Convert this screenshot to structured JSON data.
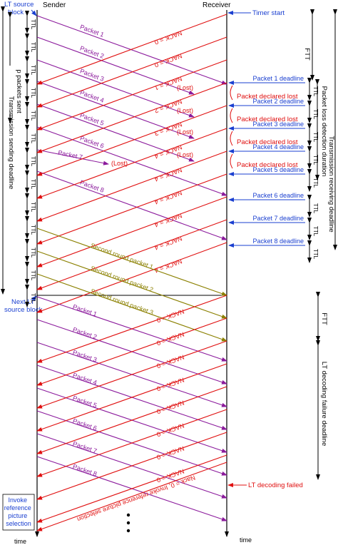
{
  "labels": {
    "sender": "Sender",
    "receiver": "Receiver",
    "time_left": "time",
    "time_right": "time",
    "lt_source_block": [
      "LT source",
      "block"
    ],
    "next_lt_source_block": [
      "Next LT",
      "source block"
    ],
    "p_packets_sent": "p packets sent",
    "transmission_sending_deadline": "Transmission sending deadline",
    "timer_start": "Timer start",
    "ftt": "FTT",
    "packet_loss_detection_duration": "Packet loss detection duration",
    "transmission_receiving_deadline": "Transmission receiving deadline",
    "lt_decoding_failure_deadline": "LT decoding failure deadline",
    "lt_decoding_failed": "LT decoding failed",
    "invoke_reference": [
      "Invoke",
      "reference",
      "picture",
      "selection"
    ],
    "ttl": "TTL",
    "lost": "(Lost)",
    "nack_invoke": "Nack = 0, Invoke reference picture selection"
  },
  "round1_packets": [
    "Packet 1",
    "Packet 2",
    "Packet 3",
    "Packet 4",
    "Packet 5",
    "Packet 6",
    "Packet 7",
    "Packet 8"
  ],
  "round1_nacks": [
    "NACK = 0",
    "NACK = 0",
    "NACK = 1",
    "NACK = 2",
    "NACK = 3",
    "NACK = 4",
    "NACK = 4",
    "NACK = 4",
    "NACK = 4",
    "NACK = 4",
    "NACK = 4"
  ],
  "second_round": [
    "Second round packet 1",
    "Second round packet 2",
    "Second round packet 3"
  ],
  "round2_packets": [
    "Packet 1",
    "Packet 2",
    "Packet 3",
    "Packet 4",
    "Packet 5",
    "Packet 6",
    "Packet 7",
    "Packet 8"
  ],
  "round2_nacks": [
    "NACK = 0",
    "NACK = 0",
    "NACK = 0",
    "NACK = 0",
    "NACK = 0",
    "NACK = 0",
    "NACK = 0",
    "NACK = 0"
  ],
  "deadlines": [
    "Packet 1 deadline",
    "Packet 2 deadline",
    "Packet 3 deadline",
    "Packet 4 deadline",
    "Packet 5 deadline",
    "Packet 6 deadline",
    "Packet 7 deadline",
    "Packet 8 deadline"
  ],
  "declared_lost": [
    "Packet declared lost",
    "Packet declared lost",
    "Packet declared lost",
    "Packet declared lost"
  ],
  "colors": {
    "packet": "#8b1a9c",
    "nack": "#e01010",
    "second_round": "#8b8000",
    "annotation": "#1a3fd0",
    "axis": "#000000"
  }
}
